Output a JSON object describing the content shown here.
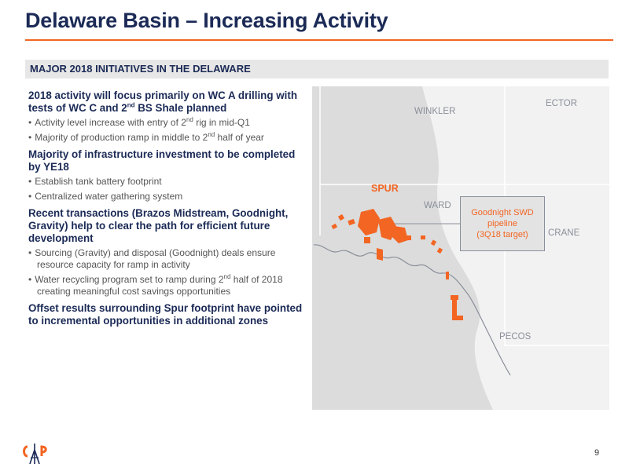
{
  "title": "Delaware Basin – Increasing Activity",
  "band": "MAJOR 2018 INITIATIVES IN THE DELAWARE",
  "sections": [
    {
      "head_pre": "2018 activity will focus primarily on WC A drilling with tests of WC C and 2",
      "head_sup": "nd",
      "head_post": " BS Shale planned",
      "bullets": [
        {
          "pre": "Activity level increase with entry of 2",
          "sup": "nd",
          "post": " rig in mid-Q1"
        },
        {
          "pre": "Majority of production ramp in middle to 2",
          "sup": "nd",
          "post": " half of year"
        }
      ]
    },
    {
      "head": "Majority of infrastructure investment to be completed by YE18",
      "bullets": [
        {
          "text": "Establish tank battery footprint"
        },
        {
          "text": "Centralized water gathering system"
        }
      ]
    },
    {
      "head": "Recent transactions (Brazos Midstream, Goodnight, Gravity) help to clear the path for efficient future development",
      "bullets": [
        {
          "text": "Sourcing (Gravity) and disposal (Goodnight) deals ensure resource capacity for ramp in activity"
        },
        {
          "pre": "Water recycling program set to ramp during 2",
          "sup": "nd",
          "post": " half of 2018 creating meaningful cost savings opportunities"
        }
      ]
    },
    {
      "head": "Offset results surrounding Spur footprint have pointed to incremental opportunities in additional zones"
    }
  ],
  "map": {
    "counties": [
      "WINKLER",
      "ECTOR",
      "WARD",
      "CRANE",
      "PECOS"
    ],
    "spur": "SPUR",
    "callout": [
      "Goodnight SWD",
      "pipeline",
      "(3Q18 target)"
    ]
  },
  "colors": {
    "navy": "#1b2a56",
    "orange": "#f26522",
    "gray": "#8a8f99"
  },
  "page_number": "9"
}
